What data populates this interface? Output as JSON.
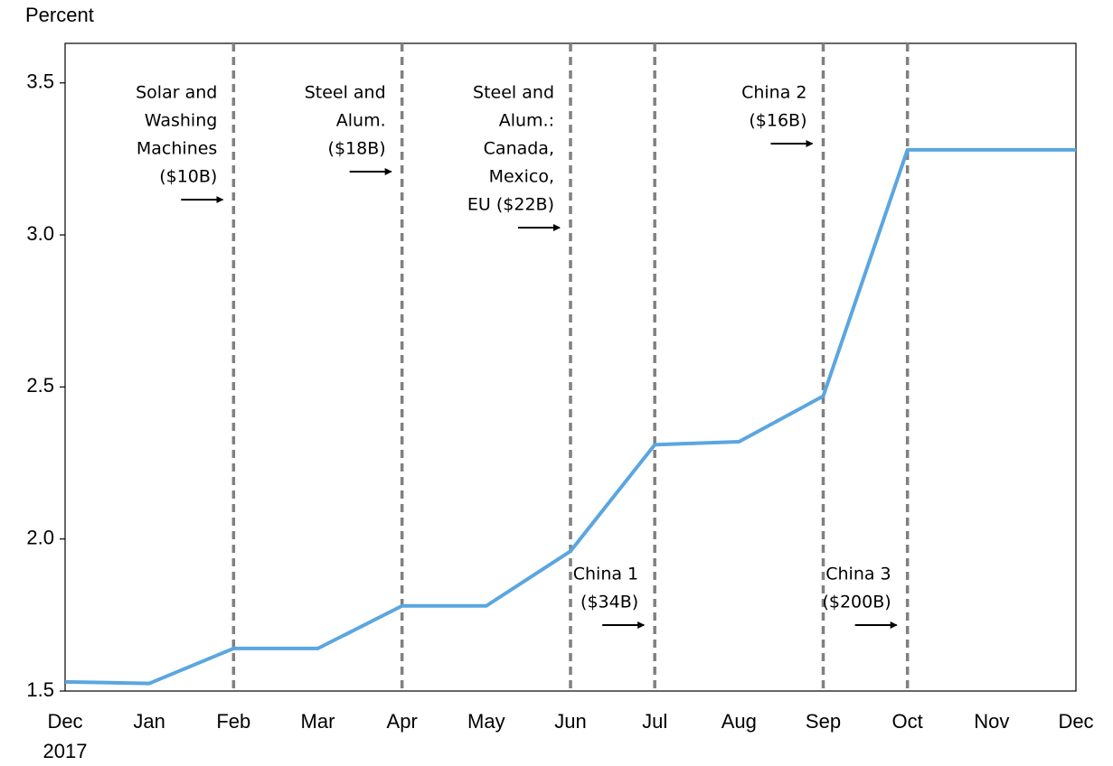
{
  "chart_data": {
    "type": "line",
    "y_label": "Percent",
    "categories": [
      "Dec",
      "Jan",
      "Feb",
      "Mar",
      "Apr",
      "May",
      "Jun",
      "Jul",
      "Aug",
      "Sep",
      "Oct",
      "Nov",
      "Dec"
    ],
    "year_label": "2017",
    "values": [
      1.53,
      1.525,
      1.64,
      1.64,
      1.78,
      1.78,
      1.96,
      2.31,
      2.32,
      2.47,
      3.28,
      3.28,
      3.28
    ],
    "color": "#5ba6e0",
    "ylim": [
      1.5,
      3.63
    ],
    "yticks": [
      {
        "value": 1.5,
        "label": "1.5"
      },
      {
        "value": 2.0,
        "label": "2.0"
      },
      {
        "value": 2.5,
        "label": "2.5"
      },
      {
        "value": 3.0,
        "label": "3.0"
      },
      {
        "value": 3.5,
        "label": "3.5"
      }
    ],
    "event_line_color": "#808080",
    "annotations": [
      {
        "at": "Feb",
        "position": "top",
        "lines": [
          "Solar and",
          "Washing",
          "Machines",
          "($10B)"
        ]
      },
      {
        "at": "Apr",
        "position": "top",
        "lines": [
          "Steel and",
          "Alum.",
          "($18B)"
        ]
      },
      {
        "at": "Jun",
        "position": "top",
        "lines": [
          "Steel and",
          "Alum.:",
          "Canada,",
          "Mexico,",
          "EU ($22B)"
        ]
      },
      {
        "at": "Jul",
        "position": "bottom",
        "lines": [
          "China 1",
          "($34B)"
        ]
      },
      {
        "at": "Sep",
        "position": "top",
        "lines": [
          "China 2",
          "($16B)"
        ]
      },
      {
        "at": "Oct",
        "position": "bottom",
        "lines": [
          "China 3",
          "($200B)"
        ]
      }
    ]
  }
}
